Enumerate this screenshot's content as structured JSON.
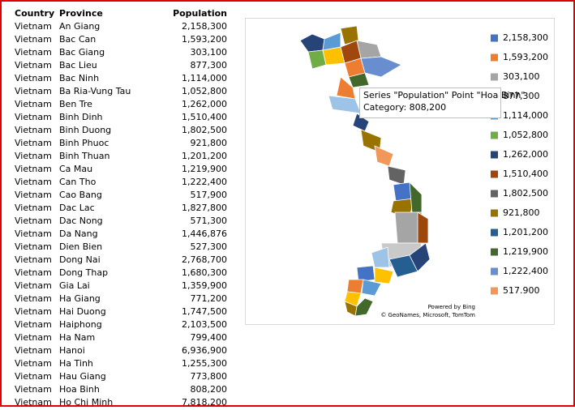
{
  "table": {
    "header": [
      "Country",
      "Province",
      "Population"
    ],
    "rows": [
      [
        "Vietnam",
        "An Giang",
        "2,158,300"
      ],
      [
        "Vietnam",
        "Bac Can",
        "1,593,200"
      ],
      [
        "Vietnam",
        "Bac Giang",
        "303,100"
      ],
      [
        "Vietnam",
        "Bac Lieu",
        "877,300"
      ],
      [
        "Vietnam",
        "Bac Ninh",
        "1,114,000"
      ],
      [
        "Vietnam",
        "Ba Ria-Vung Tau",
        "1,052,800"
      ],
      [
        "Vietnam",
        "Ben Tre",
        "1,262,000"
      ],
      [
        "Vietnam",
        "Binh Dinh",
        "1,510,400"
      ],
      [
        "Vietnam",
        "Binh Duong",
        "1,802,500"
      ],
      [
        "Vietnam",
        "Binh Phuoc",
        "921,800"
      ],
      [
        "Vietnam",
        "Binh Thuan",
        "1,201,200"
      ],
      [
        "Vietnam",
        "Ca Mau",
        "1,219,900"
      ],
      [
        "Vietnam",
        "Can Tho",
        "1,222,400"
      ],
      [
        "Vietnam",
        "Cao Bang",
        "517,900"
      ],
      [
        "Vietnam",
        "Dac Lac",
        "1,827,800"
      ],
      [
        "Vietnam",
        "Dac Nong",
        "571,300"
      ],
      [
        "Vietnam",
        "Da Nang",
        "1,446,876"
      ],
      [
        "Vietnam",
        "Dien Bien",
        "527,300"
      ],
      [
        "Vietnam",
        "Dong Nai",
        "2,768,700"
      ],
      [
        "Vietnam",
        "Dong Thap",
        "1,680,300"
      ],
      [
        "Vietnam",
        "Gia Lai",
        "1,359,900"
      ],
      [
        "Vietnam",
        "Ha Giang",
        "771,200"
      ],
      [
        "Vietnam",
        "Hai Duong",
        "1,747,500"
      ],
      [
        "Vietnam",
        "Haiphong",
        "2,103,500"
      ],
      [
        "Vietnam",
        "Ha Nam",
        "799,400"
      ],
      [
        "Vietnam",
        "Hanoi",
        "6,936,900"
      ],
      [
        "Vietnam",
        "Ha Tinh",
        "1,255,300"
      ],
      [
        "Vietnam",
        "Hau Giang",
        "773,800"
      ],
      [
        "Vietnam",
        "Hoa Binh",
        "808,200"
      ],
      [
        "Vietnam",
        "Ho Chi Minh",
        "7,818,200"
      ]
    ]
  },
  "map": {
    "legend": [
      {
        "label": "2,158,300",
        "color": "#4472c4"
      },
      {
        "label": "1,593,200",
        "color": "#ed7d31"
      },
      {
        "label": "303,100",
        "color": "#a5a5a5"
      },
      {
        "label": "877,300",
        "color": "#ffc000"
      },
      {
        "label": "1,114,000",
        "color": "#5b9bd5"
      },
      {
        "label": "1,052,800",
        "color": "#70ad47"
      },
      {
        "label": "1,262,000",
        "color": "#264478"
      },
      {
        "label": "1,510,400",
        "color": "#9e480e"
      },
      {
        "label": "1,802,500",
        "color": "#636363"
      },
      {
        "label": "921,800",
        "color": "#997300"
      },
      {
        "label": "1,201,200",
        "color": "#255e91"
      },
      {
        "label": "1,219,900",
        "color": "#43682b"
      },
      {
        "label": "1,222,400",
        "color": "#698ed0"
      },
      {
        "label": "517.900",
        "color": "#f1975a"
      }
    ],
    "attribution": [
      "Powered by Bing",
      "© GeoNames, Microsoft, TomTom"
    ],
    "tooltip": [
      "Series \"Population\" Point \"Hoa Binh\"",
      "Category: 808,200"
    ]
  }
}
